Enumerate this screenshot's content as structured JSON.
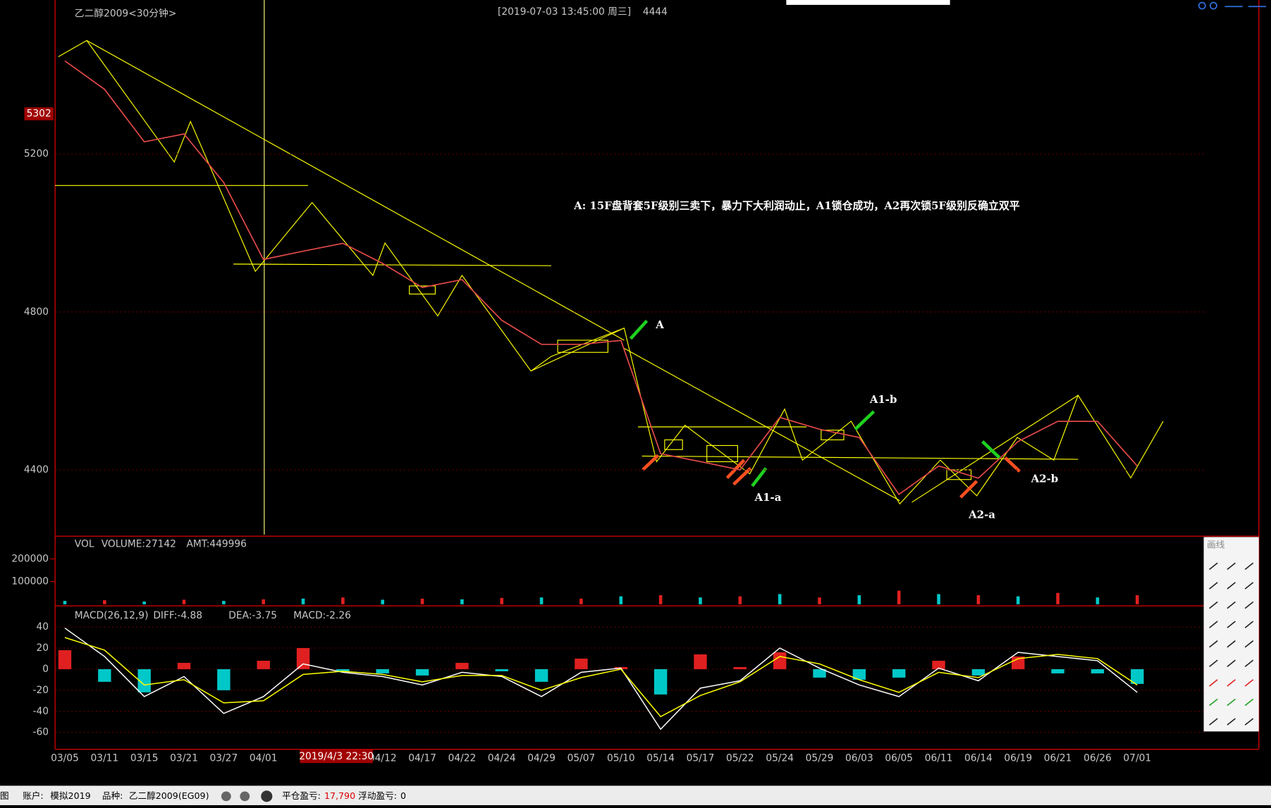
{
  "header": {
    "title": "乙二醇2009<30分钟>",
    "timestamp": "[2019-07-03  13:45:00 周三]",
    "price": "4444"
  },
  "chart_data": [
    {
      "type": "line",
      "color": "#e04848",
      "values": [
        5436,
        5364,
        5231,
        5251,
        5128,
        4933,
        4954,
        4974,
        4923,
        4862,
        4882,
        4779,
        4718,
        4718,
        4728,
        4441,
        4421,
        4400,
        4533,
        4503,
        4482,
        4338,
        4410,
        4379,
        4472,
        4523,
        4523,
        4410
      ],
      "ylim": [
        4236,
        5580
      ],
      "yticks": [
        4400,
        4800,
        5200
      ],
      "grid": true,
      "price_marker": 5302,
      "annotations": [
        "A: 15F盘背套5F级别三卖下，暴力下大利润动止，A1锁仓成功，A2再次锁5F级别反确立双平",
        "A",
        "A1-b",
        "A1-a",
        "A2-a",
        "A2-b"
      ]
    },
    {
      "type": "bar",
      "title": "VOL",
      "legend": [
        "VOLUME:27142",
        "AMT:449996"
      ],
      "color": "#00c8c8",
      "values": [
        15000,
        18000,
        12000,
        20000,
        15000,
        22000,
        25000,
        30000,
        20000,
        25000,
        22000,
        28000,
        30000,
        25000,
        35000,
        40000,
        30000,
        35000,
        45000,
        30000,
        40000,
        60000,
        45000,
        40000,
        35000,
        50000,
        30000,
        40000
      ],
      "ylim": [
        0,
        300000
      ],
      "yticks": [
        100000,
        200000
      ]
    },
    {
      "type": "macd",
      "title": "MACD(26,12,9)",
      "legend": [
        "DIFF:-4.88",
        "DEA:-3.75",
        "MACD:-2.26"
      ],
      "categories": [
        "03/05",
        "03/11",
        "03/15",
        "03/21",
        "03/27",
        "04/01",
        null,
        null,
        "04/12",
        "04/17",
        "04/22",
        "04/24",
        "04/29",
        "05/07",
        "05/10",
        "05/14",
        "05/17",
        "05/22",
        "05/24",
        "05/29",
        "06/03",
        "06/05",
        "06/11",
        "06/14",
        "06/19",
        "06/21",
        "06/26",
        "07/01"
      ],
      "series": [
        {
          "color": "#ffffff",
          "values": [
            39,
            12,
            -26,
            -7,
            -42,
            -26,
            5,
            -3,
            -7,
            -15,
            -3,
            -7,
            -26,
            -3,
            1,
            -57,
            -18,
            -11,
            20,
            1,
            -15,
            -26,
            1,
            -11,
            16,
            12,
            8,
            -22
          ]
        },
        {
          "color": "#ffff00",
          "values": [
            30,
            18,
            -15,
            -10,
            -32,
            -30,
            -5,
            -2,
            -5,
            -12,
            -6,
            -6,
            -20,
            -8,
            0,
            -45,
            -25,
            -12,
            12,
            5,
            -10,
            -22,
            -3,
            -8,
            10,
            14,
            10,
            -15
          ]
        },
        {
          "color": "#00c8c8",
          "negative_color": "#00c8c8",
          "positive_color": "#e02020",
          "values": [
            18,
            -12,
            -22,
            6,
            -20,
            8,
            20,
            -2,
            -4,
            -6,
            6,
            -2,
            -12,
            10,
            2,
            -24,
            14,
            2,
            16,
            -8,
            -10,
            -8,
            8,
            -6,
            12,
            -4,
            -4,
            -14
          ]
        }
      ],
      "ylim": [
        -76,
        60
      ],
      "yticks": [
        40,
        20,
        0,
        -20,
        -40,
        -60
      ],
      "grid": true,
      "cursor_label": "2019/4/3 22:30"
    }
  ],
  "drawing_toolbar": {
    "title": "画线"
  },
  "status_bar": {
    "cut": "图",
    "account_label": "账户:",
    "account": "模拟2019",
    "symbol_label": "品种:",
    "symbol": "乙二醇2009(EG09)",
    "closed_pl_label": "平仓盈亏:",
    "closed_pl": "17,790",
    "floating_pl_label": "浮动盈亏:",
    "floating_pl": "0"
  }
}
